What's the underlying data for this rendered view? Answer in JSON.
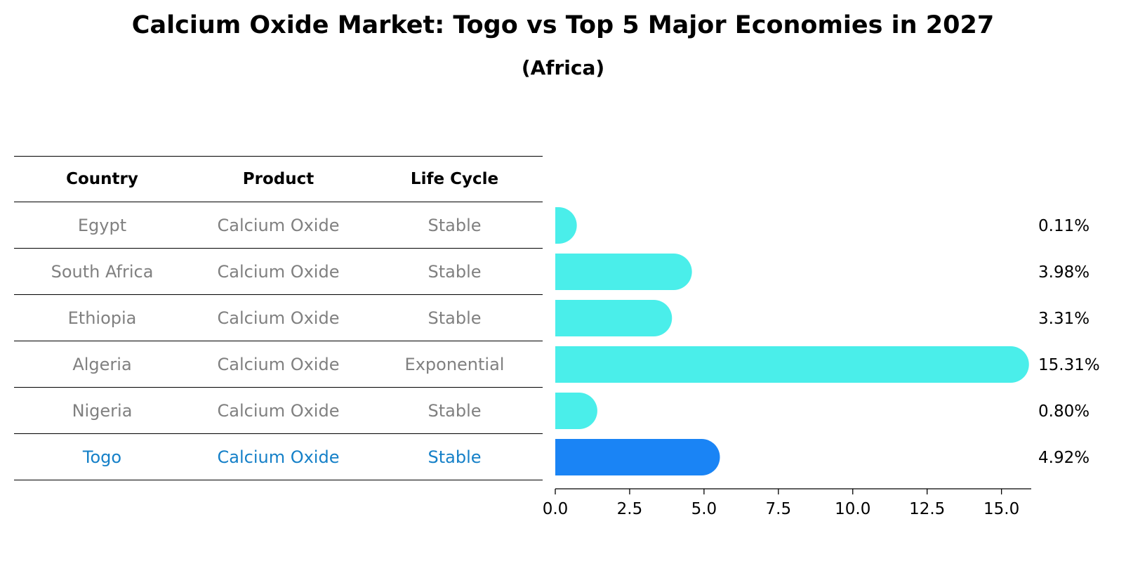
{
  "title": "Calcium Oxide Market: Togo vs Top 5 Major Economies in 2027",
  "subtitle": "(Africa)",
  "table": {
    "headers": [
      "Country",
      "Product",
      "Life Cycle"
    ],
    "rows": [
      {
        "country": "Egypt",
        "product": "Calcium Oxide",
        "life_cycle": "Stable"
      },
      {
        "country": "South Africa",
        "product": "Calcium Oxide",
        "life_cycle": "Stable"
      },
      {
        "country": "Ethiopia",
        "product": "Calcium Oxide",
        "life_cycle": "Stable"
      },
      {
        "country": "Algeria",
        "product": "Calcium Oxide",
        "life_cycle": "Exponential"
      },
      {
        "country": "Nigeria",
        "product": "Calcium Oxide",
        "life_cycle": "Stable"
      },
      {
        "country": "Togo",
        "product": "Calcium Oxide",
        "life_cycle": "Stable"
      }
    ],
    "highlight_color": "#1580c8"
  },
  "chart_data": {
    "type": "bar",
    "orientation": "horizontal",
    "categories": [
      "Egypt",
      "South Africa",
      "Ethiopia",
      "Algeria",
      "Nigeria",
      "Togo"
    ],
    "values": [
      0.11,
      3.98,
      3.31,
      15.31,
      0.8,
      4.92
    ],
    "value_labels": [
      "0.11%",
      "3.98%",
      "3.31%",
      "15.31%",
      "0.80%",
      "4.92%"
    ],
    "highlight": "Togo",
    "colors": {
      "default": "#4aeeea",
      "highlight": "#1a84f5"
    },
    "xlim": [
      0,
      16
    ],
    "xticks": [
      0.0,
      2.5,
      5.0,
      7.5,
      10.0,
      12.5,
      15.0
    ],
    "xtick_labels": [
      "0.0",
      "2.5",
      "5.0",
      "7.5",
      "10.0",
      "12.5",
      "15.0"
    ],
    "grid": false,
    "legend": "none"
  }
}
